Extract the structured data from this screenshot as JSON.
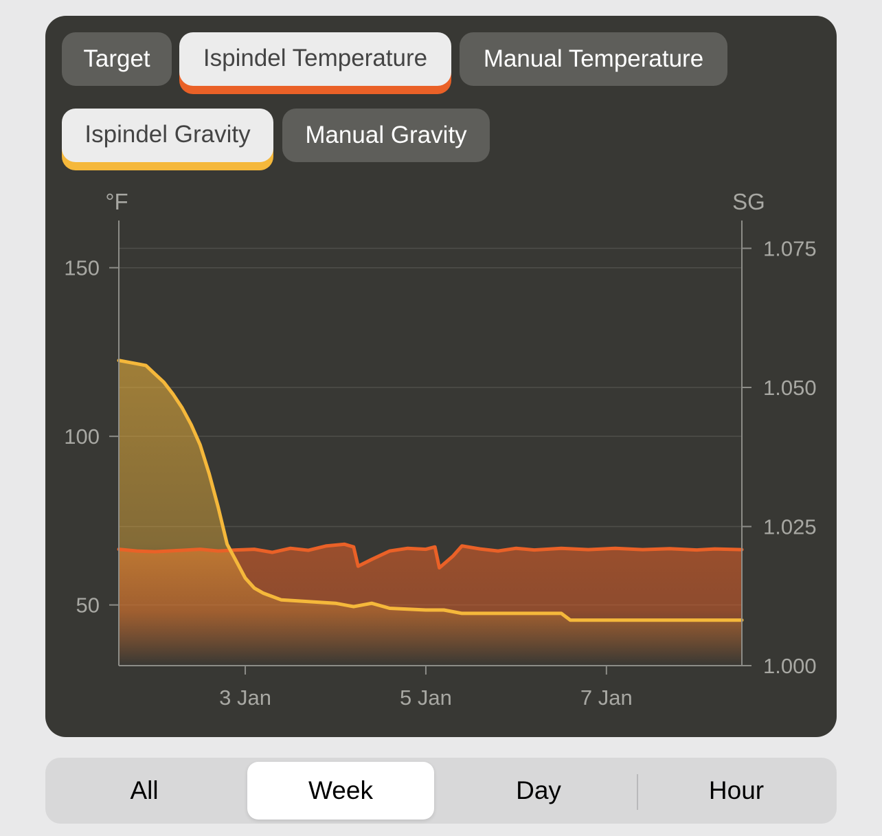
{
  "filters": {
    "target": {
      "label": "Target",
      "active": false
    },
    "ispindel_temperature": {
      "label": "Ispindel Temperature",
      "active": true
    },
    "manual_temperature": {
      "label": "Manual Temperature",
      "active": false
    },
    "ispindel_gravity": {
      "label": "Ispindel Gravity",
      "active": true
    },
    "manual_gravity": {
      "label": "Manual Gravity",
      "active": false
    }
  },
  "colors": {
    "temperature": "#ea6127",
    "gravity": "#f5b83b",
    "card_background": "#383834",
    "grid": "#4f4f4a",
    "axis": "#8d8d88",
    "tick_label": "#a8a8a3"
  },
  "range_selector": {
    "options": [
      "All",
      "Week",
      "Day",
      "Hour"
    ],
    "selected": "Week"
  },
  "chart_data": {
    "type": "area",
    "x_unit": "days in January",
    "xlim": [
      1.6,
      8.5
    ],
    "x_ticks": [
      {
        "value": 3,
        "label": "3 Jan"
      },
      {
        "value": 5,
        "label": "5 Jan"
      },
      {
        "value": 7,
        "label": "7 Jan"
      }
    ],
    "y_left": {
      "label": "°F",
      "ylim": [
        32,
        164
      ],
      "ticks": [
        {
          "value": 50,
          "label": "50"
        },
        {
          "value": 100,
          "label": "100"
        },
        {
          "value": 150,
          "label": "150"
        }
      ]
    },
    "y_right": {
      "label": "SG",
      "ylim": [
        1.0,
        1.08
      ],
      "ticks": [
        {
          "value": 1.0,
          "label": "1.000"
        },
        {
          "value": 1.025,
          "label": "1.025"
        },
        {
          "value": 1.05,
          "label": "1.050"
        },
        {
          "value": 1.075,
          "label": "1.075"
        }
      ]
    },
    "grid": true,
    "legend": "none",
    "series": [
      {
        "axis": "left",
        "color": "#ea6127",
        "points": [
          [
            1.6,
            66.5
          ],
          [
            1.8,
            66.0
          ],
          [
            2.0,
            65.8
          ],
          [
            2.3,
            66.2
          ],
          [
            2.5,
            66.5
          ],
          [
            2.7,
            66.0
          ],
          [
            2.9,
            66.3
          ],
          [
            3.1,
            66.5
          ],
          [
            3.3,
            65.6
          ],
          [
            3.5,
            66.8
          ],
          [
            3.7,
            66.2
          ],
          [
            3.9,
            67.5
          ],
          [
            4.1,
            68.0
          ],
          [
            4.2,
            67.2
          ],
          [
            4.25,
            61.5
          ],
          [
            4.4,
            63.5
          ],
          [
            4.6,
            66.0
          ],
          [
            4.8,
            66.8
          ],
          [
            5.0,
            66.5
          ],
          [
            5.1,
            67.2
          ],
          [
            5.15,
            61.0
          ],
          [
            5.3,
            64.5
          ],
          [
            5.4,
            67.5
          ],
          [
            5.6,
            66.6
          ],
          [
            5.8,
            66.0
          ],
          [
            6.0,
            66.8
          ],
          [
            6.2,
            66.3
          ],
          [
            6.5,
            66.8
          ],
          [
            6.8,
            66.4
          ],
          [
            7.1,
            66.8
          ],
          [
            7.4,
            66.4
          ],
          [
            7.7,
            66.7
          ],
          [
            8.0,
            66.3
          ],
          [
            8.2,
            66.6
          ],
          [
            8.5,
            66.4
          ]
        ]
      },
      {
        "axis": "left",
        "color": "#f5b83b",
        "points": [
          [
            1.6,
            122.5
          ],
          [
            1.8,
            121.5
          ],
          [
            1.9,
            121.0
          ],
          [
            2.0,
            118.5
          ],
          [
            2.1,
            116.0
          ],
          [
            2.2,
            112.5
          ],
          [
            2.3,
            108.5
          ],
          [
            2.4,
            103.5
          ],
          [
            2.5,
            97.5
          ],
          [
            2.6,
            89.0
          ],
          [
            2.7,
            79.0
          ],
          [
            2.8,
            68.0
          ],
          [
            2.9,
            63.0
          ],
          [
            3.0,
            58.0
          ],
          [
            3.1,
            55.0
          ],
          [
            3.2,
            53.5
          ],
          [
            3.4,
            51.5
          ],
          [
            3.7,
            51.0
          ],
          [
            4.0,
            50.5
          ],
          [
            4.2,
            49.5
          ],
          [
            4.4,
            50.5
          ],
          [
            4.6,
            49.0
          ],
          [
            5.0,
            48.5
          ],
          [
            5.2,
            48.5
          ],
          [
            5.4,
            47.5
          ],
          [
            5.8,
            47.5
          ],
          [
            6.2,
            47.5
          ],
          [
            6.5,
            47.5
          ],
          [
            6.6,
            45.5
          ],
          [
            7.0,
            45.5
          ],
          [
            7.5,
            45.5
          ],
          [
            8.0,
            45.5
          ],
          [
            8.5,
            45.5
          ]
        ]
      }
    ]
  }
}
